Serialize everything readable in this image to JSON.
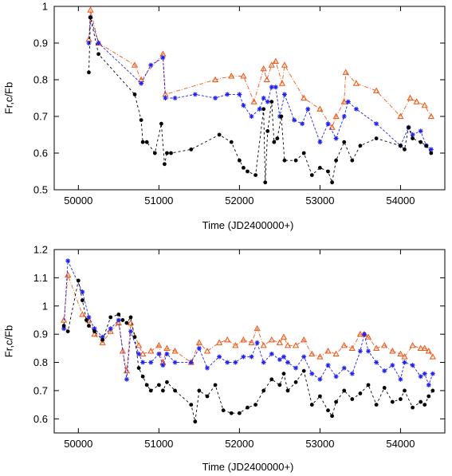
{
  "colors": {
    "black": "#000000",
    "blue": "#2222ee",
    "orange": "#ee5a1a"
  },
  "chart_data": [
    {
      "type": "scatter",
      "title": "",
      "xlabel": "Time (JD2400000+)",
      "ylabel": "Fr,c/Fb",
      "xlim": [
        49700,
        54550
      ],
      "ylim": [
        0.5,
        1.0
      ],
      "xticks": [
        50000,
        51000,
        52000,
        53000,
        54000
      ],
      "xtick_labels": [
        "50000",
        "51000",
        "52000",
        "53000",
        "54000"
      ],
      "yticks": [
        0.5,
        0.6,
        0.7,
        0.8,
        0.9,
        1.0
      ],
      "ytick_labels": [
        "0.5",
        "0.6",
        "0.7",
        "0.8",
        "0.9",
        "1"
      ],
      "series": [
        {
          "color": "#ee5a1a",
          "marker": "triangle",
          "x": [
            50130,
            50150,
            50250,
            50700,
            50780,
            51050,
            51080,
            51700,
            51900,
            52050,
            52180,
            52300,
            52340,
            52400,
            52450,
            52530,
            52560,
            52800,
            53000,
            53150,
            53200,
            53300,
            53320,
            53450,
            53700,
            54000,
            54120,
            54200,
            54300,
            54380
          ],
          "y": [
            0.91,
            0.99,
            0.9,
            0.84,
            0.8,
            0.87,
            0.76,
            0.8,
            0.81,
            0.81,
            0.74,
            0.83,
            0.8,
            0.84,
            0.85,
            0.79,
            0.84,
            0.75,
            0.72,
            0.67,
            0.7,
            0.74,
            0.82,
            0.79,
            0.77,
            0.7,
            0.75,
            0.74,
            0.73,
            0.7
          ]
        },
        {
          "color": "#2222ee",
          "marker": "star",
          "x": [
            50130,
            50150,
            50250,
            50780,
            50900,
            51050,
            51080,
            51200,
            51450,
            51700,
            51850,
            52000,
            52050,
            52150,
            52250,
            52300,
            52350,
            52400,
            52450,
            52500,
            52560,
            52680,
            52780,
            52850,
            53000,
            53100,
            53200,
            53300,
            53350,
            53450,
            53700,
            54000,
            54100,
            54150,
            54250,
            54320,
            54380
          ],
          "y": [
            0.9,
            0.97,
            0.9,
            0.79,
            0.84,
            0.86,
            0.75,
            0.75,
            0.76,
            0.75,
            0.76,
            0.76,
            0.73,
            0.7,
            0.72,
            0.75,
            0.74,
            0.78,
            0.78,
            0.7,
            0.76,
            0.69,
            0.68,
            0.72,
            0.63,
            0.68,
            0.64,
            0.7,
            0.74,
            0.72,
            0.68,
            0.62,
            0.67,
            0.65,
            0.66,
            0.62,
            0.61
          ]
        },
        {
          "color": "#000000",
          "marker": "circle",
          "x": [
            50130,
            50150,
            50250,
            50700,
            50780,
            50800,
            50850,
            50950,
            51030,
            51070,
            51100,
            51150,
            51400,
            51750,
            51900,
            52000,
            52050,
            52100,
            52200,
            52300,
            52320,
            52350,
            52400,
            52430,
            52470,
            52520,
            52560,
            52700,
            52800,
            52900,
            53000,
            53100,
            53150,
            53200,
            53300,
            53400,
            53500,
            53700,
            54000,
            54050,
            54100,
            54150,
            54250,
            54320,
            54380
          ],
          "y": [
            0.82,
            0.97,
            0.87,
            0.76,
            0.69,
            0.63,
            0.63,
            0.6,
            0.68,
            0.57,
            0.6,
            0.6,
            0.61,
            0.65,
            0.63,
            0.58,
            0.56,
            0.55,
            0.54,
            0.72,
            0.52,
            0.66,
            0.74,
            0.63,
            0.64,
            0.7,
            0.58,
            0.58,
            0.6,
            0.54,
            0.56,
            0.55,
            0.52,
            0.58,
            0.63,
            0.58,
            0.62,
            0.64,
            0.62,
            0.61,
            0.67,
            0.64,
            0.63,
            0.62,
            0.6
          ]
        }
      ]
    },
    {
      "type": "scatter",
      "title": "",
      "xlabel": "Time (JD2400000+)",
      "ylabel": "Fr,c/Fb",
      "xlim": [
        49700,
        54550
      ],
      "ylim": [
        0.55,
        1.2
      ],
      "xticks": [
        50000,
        51000,
        52000,
        53000,
        54000
      ],
      "xtick_labels": [
        "50000",
        "51000",
        "52000",
        "53000",
        "54000"
      ],
      "yticks": [
        0.6,
        0.7,
        0.8,
        0.9,
        1.0,
        1.1,
        1.2
      ],
      "ytick_labels": [
        "0.6",
        "0.7",
        "0.8",
        "0.9",
        "1",
        "1.1",
        "1.2"
      ],
      "series": [
        {
          "color": "#ee5a1a",
          "marker": "triangle",
          "x": [
            49820,
            49870,
            50050,
            50130,
            50200,
            50300,
            50400,
            50500,
            50550,
            50600,
            50650,
            50750,
            50800,
            50900,
            51000,
            51050,
            51100,
            51200,
            51400,
            51500,
            51600,
            51750,
            51850,
            51950,
            52050,
            52150,
            52220,
            52300,
            52400,
            52500,
            52550,
            52600,
            52700,
            52800,
            52900,
            53000,
            53100,
            53200,
            53300,
            53400,
            53500,
            53550,
            53600,
            53700,
            53800,
            53900,
            54000,
            54050,
            54150,
            54250,
            54300,
            54350,
            54400
          ],
          "y": [
            0.95,
            1.11,
            0.97,
            0.95,
            0.9,
            0.87,
            0.91,
            0.94,
            0.84,
            0.77,
            0.94,
            0.86,
            0.83,
            0.84,
            0.86,
            0.8,
            0.85,
            0.84,
            0.8,
            0.87,
            0.84,
            0.87,
            0.88,
            0.86,
            0.88,
            0.87,
            0.92,
            0.86,
            0.88,
            0.87,
            0.89,
            0.86,
            0.86,
            0.88,
            0.83,
            0.82,
            0.84,
            0.83,
            0.86,
            0.85,
            0.9,
            0.9,
            0.89,
            0.85,
            0.86,
            0.84,
            0.83,
            0.82,
            0.86,
            0.85,
            0.85,
            0.84,
            0.82
          ]
        },
        {
          "color": "#2222ee",
          "marker": "star",
          "x": [
            49820,
            49870,
            50050,
            50130,
            50200,
            50300,
            50400,
            50500,
            50600,
            50650,
            50750,
            50800,
            50900,
            51000,
            51050,
            51100,
            51200,
            51400,
            51500,
            51600,
            51750,
            51850,
            51950,
            52050,
            52150,
            52220,
            52300,
            52400,
            52500,
            52550,
            52600,
            52700,
            52800,
            52900,
            53000,
            53100,
            53200,
            53300,
            53400,
            53500,
            53550,
            53600,
            53700,
            53800,
            53900,
            54000,
            54050,
            54150,
            54250,
            54300,
            54350,
            54400
          ],
          "y": [
            0.92,
            1.16,
            1.05,
            0.96,
            0.92,
            0.89,
            0.92,
            0.95,
            0.74,
            0.91,
            0.83,
            0.8,
            0.8,
            0.83,
            0.79,
            0.83,
            0.8,
            0.8,
            0.85,
            0.78,
            0.82,
            0.8,
            0.8,
            0.82,
            0.82,
            0.87,
            0.8,
            0.83,
            0.81,
            0.82,
            0.8,
            0.78,
            0.82,
            0.76,
            0.74,
            0.79,
            0.75,
            0.78,
            0.76,
            0.84,
            0.9,
            0.84,
            0.8,
            0.77,
            0.79,
            0.74,
            0.8,
            0.79,
            0.75,
            0.76,
            0.72,
            0.76
          ]
        },
        {
          "color": "#000000",
          "marker": "circle",
          "x": [
            49820,
            49870,
            50000,
            50050,
            50100,
            50130,
            50200,
            50300,
            50400,
            50500,
            50550,
            50600,
            50650,
            50700,
            50750,
            50800,
            50850,
            50900,
            51000,
            51050,
            51100,
            51200,
            51400,
            51450,
            51500,
            51600,
            51700,
            51800,
            51900,
            52000,
            52100,
            52200,
            52300,
            52400,
            52500,
            52550,
            52600,
            52700,
            52800,
            52900,
            53000,
            53100,
            53150,
            53200,
            53300,
            53400,
            53500,
            53600,
            53700,
            53800,
            53900,
            54000,
            54050,
            54150,
            54250,
            54300,
            54350,
            54400
          ],
          "y": [
            0.93,
            0.91,
            1.09,
            1.02,
            0.95,
            0.93,
            0.91,
            0.88,
            0.96,
            0.97,
            0.95,
            0.94,
            0.96,
            0.89,
            0.78,
            0.75,
            0.72,
            0.7,
            0.72,
            0.7,
            0.73,
            0.7,
            0.65,
            0.59,
            0.7,
            0.68,
            0.72,
            0.63,
            0.62,
            0.62,
            0.64,
            0.65,
            0.7,
            0.74,
            0.72,
            0.76,
            0.7,
            0.73,
            0.77,
            0.65,
            0.68,
            0.63,
            0.61,
            0.66,
            0.7,
            0.67,
            0.69,
            0.72,
            0.65,
            0.71,
            0.66,
            0.67,
            0.7,
            0.64,
            0.66,
            0.65,
            0.68,
            0.7
          ]
        }
      ]
    }
  ]
}
